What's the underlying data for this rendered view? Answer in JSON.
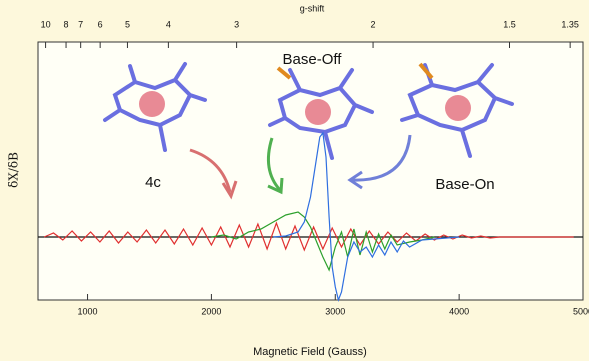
{
  "chart_data": {
    "type": "line",
    "x_label": "Magnetic Field (Gauss)",
    "y_label": "δX/δB",
    "x2_label": "g-shift",
    "annotations": [
      "Base-Off",
      "4c",
      "Base-On"
    ],
    "xlim": [
      600,
      5000
    ],
    "xticks": [
      1000,
      2000,
      3000,
      4000,
      5000
    ],
    "x2lim": [
      11.02,
      1.322
    ],
    "x2scale": "reciprocal",
    "x2ticks": [
      10,
      8,
      7,
      6,
      5,
      4,
      3,
      2,
      1.5,
      1.35
    ],
    "ylim": [
      -0.63,
      1.95
    ],
    "series": [
      {
        "color": "#e03030",
        "x": [
          650,
          725,
          800,
          875,
          950,
          1025,
          1100,
          1175,
          1250,
          1325,
          1400,
          1475,
          1550,
          1625,
          1700,
          1775,
          1850,
          1925,
          2000,
          2075,
          2150,
          2225,
          2300,
          2375,
          2450,
          2525,
          2600,
          2675,
          2750,
          2825,
          2900,
          2975,
          3050,
          3125,
          3200,
          3275,
          3350,
          3425,
          3500,
          3575,
          3650,
          3725,
          3800,
          3875,
          3950,
          4025,
          4100,
          4175,
          4250,
          4325,
          4400,
          4475,
          4550,
          4625,
          4700,
          4775,
          4850,
          4925
        ],
        "values": [
          0,
          0.04,
          -0.03,
          0.06,
          -0.04,
          0.05,
          -0.05,
          0.06,
          -0.06,
          0.05,
          -0.05,
          0.07,
          -0.06,
          0.07,
          -0.07,
          0.08,
          -0.08,
          0.09,
          -0.08,
          0.1,
          -0.1,
          0.12,
          -0.1,
          0.13,
          -0.12,
          0.14,
          -0.12,
          0.11,
          -0.13,
          0.1,
          -0.12,
          0.09,
          -0.1,
          0.08,
          -0.08,
          0.06,
          -0.07,
          0.05,
          -0.05,
          0.04,
          -0.04,
          0.03,
          -0.03,
          0.02,
          -0.02,
          0.02,
          -0.01,
          0.01,
          -0.01,
          0,
          0,
          0,
          0,
          0,
          0,
          0,
          0,
          0
        ]
      },
      {
        "color": "#2ca02c",
        "x": [
          2000,
          2100,
          2200,
          2300,
          2400,
          2500,
          2600,
          2700,
          2750,
          2800,
          2850,
          2900,
          2950,
          3000,
          3050,
          3100,
          3150,
          3200,
          3250,
          3300,
          3350,
          3400,
          3450,
          3500,
          3600,
          3700,
          3800
        ],
        "values": [
          0,
          0.02,
          -0.02,
          0.05,
          0.08,
          0.15,
          0.22,
          0.25,
          0.2,
          0.1,
          -0.05,
          -0.2,
          -0.33,
          -0.1,
          0.05,
          -0.2,
          0.08,
          -0.18,
          0.05,
          -0.15,
          0.03,
          -0.12,
          0.02,
          -0.08,
          -0.05,
          -0.03,
          0
        ]
      },
      {
        "color": "#2f6fe0",
        "x": [
          2500,
          2600,
          2700,
          2750,
          2800,
          2850,
          2875,
          2900,
          2925,
          2950,
          2975,
          3000,
          3025,
          3050,
          3100,
          3150,
          3200,
          3250,
          3300,
          3350,
          3400,
          3450,
          3500,
          3550,
          3600,
          3700,
          3800,
          4000
        ],
        "values": [
          0,
          0.01,
          0.05,
          0.15,
          0.4,
          0.8,
          1.0,
          1.04,
          0.8,
          0.2,
          -0.3,
          -0.5,
          -0.63,
          -0.55,
          -0.2,
          -0.05,
          -0.15,
          -0.1,
          -0.2,
          -0.08,
          -0.18,
          -0.05,
          -0.15,
          -0.04,
          -0.1,
          -0.03,
          -0.02,
          0
        ]
      }
    ]
  }
}
